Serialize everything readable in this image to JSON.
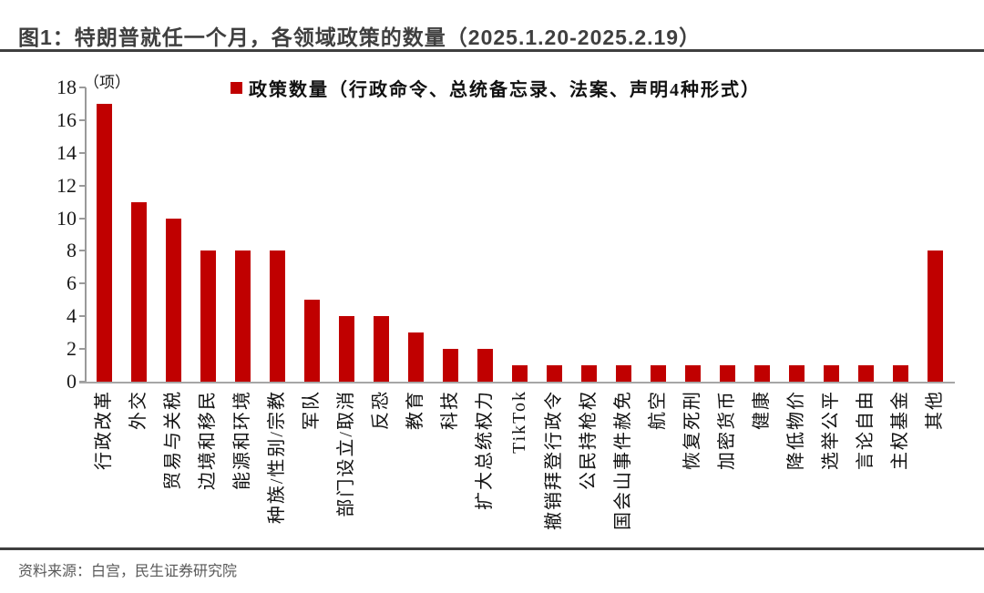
{
  "header": {
    "title": "图1：特朗普就任一个月，各领域政策的数量（2025.1.20-2025.2.19）"
  },
  "chart": {
    "unit_label": "（项）",
    "legend": {
      "marker_icon": "red-square-legend-marker",
      "marker_color": "#c00000",
      "label": "政策数量（行政命令、总统备忘录、法案、声明4种形式）"
    }
  },
  "footer": {
    "source": "资料来源：白宫，民生证券研究院"
  },
  "colors": {
    "bar": "#c00000",
    "axis": "#a6a6a6",
    "title_text": "#3f3f3f",
    "footer_text": "#595959",
    "rule": "#3f3f3f"
  },
  "chart_data": {
    "type": "bar",
    "title": "特朗普就任一个月，各领域政策的数量（2025.1.20-2025.2.19）",
    "categories": [
      "行政改革",
      "外交",
      "贸易与关税",
      "边境和移民",
      "能源和环境",
      "种族/性别/宗教",
      "军队",
      "部门设立/取消",
      "反恐",
      "教育",
      "科技",
      "扩大总统权力",
      "TikTok",
      "撤销拜登行政令",
      "公民持枪权",
      "国会山事件赦免",
      "航空",
      "恢复死刑",
      "加密货币",
      "健康",
      "降低物价",
      "选举公平",
      "言论自由",
      "主权基金",
      "其他"
    ],
    "values": [
      17,
      11,
      10,
      8,
      8,
      8,
      5,
      4,
      4,
      3,
      2,
      2,
      1,
      1,
      1,
      1,
      1,
      1,
      1,
      1,
      1,
      1,
      1,
      1,
      8
    ],
    "series": [
      {
        "name": "政策数量（行政命令、总统备忘录、法案、声明4种形式）",
        "values": [
          17,
          11,
          10,
          8,
          8,
          8,
          5,
          4,
          4,
          3,
          2,
          2,
          1,
          1,
          1,
          1,
          1,
          1,
          1,
          1,
          1,
          1,
          1,
          1,
          8
        ]
      }
    ],
    "xlabel": "",
    "ylabel": "（项）",
    "ylim": [
      0,
      18
    ],
    "yticks": [
      0,
      2,
      4,
      6,
      8,
      10,
      12,
      14,
      16,
      18
    ],
    "grid": false,
    "legend_position": "top",
    "bar_color": "#c00000"
  }
}
